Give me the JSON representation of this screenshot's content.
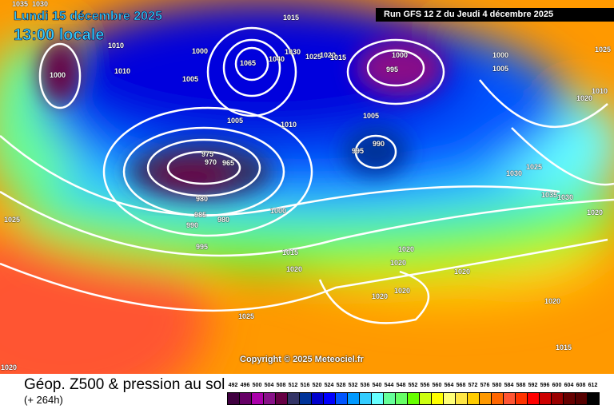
{
  "header": {
    "date_line": "Lundi 15 décembre 2025",
    "time_line": "13:00 locale",
    "run_info": "Run GFS 12 Z du Jeudi 4 décembre 2025"
  },
  "copyright": "Copyright © 2025 Meteociel.fr",
  "footer": {
    "title": "Géop. Z500 & pression au sol",
    "forecast_hour": "(+ 264h)"
  },
  "legend": {
    "values": [
      "492",
      "496",
      "500",
      "504",
      "508",
      "512",
      "516",
      "520",
      "524",
      "528",
      "532",
      "536",
      "540",
      "544",
      "548",
      "552",
      "556",
      "560",
      "564",
      "568",
      "572",
      "576",
      "580",
      "584",
      "588",
      "592",
      "596",
      "600",
      "604",
      "608",
      "612"
    ],
    "colors": [
      "#400040",
      "#660066",
      "#aa00aa",
      "#881188",
      "#660044",
      "#333366",
      "#003399",
      "#0000cc",
      "#0000ff",
      "#0055ff",
      "#0099ff",
      "#33ccff",
      "#66ffff",
      "#66ff99",
      "#66ff66",
      "#66ff00",
      "#ccff11",
      "#ffff00",
      "#ffff77",
      "#ffe644",
      "#ffcc00",
      "#ff9900",
      "#ff6600",
      "#ff5533",
      "#ff3300",
      "#ff0000",
      "#cc0000",
      "#990000",
      "#660000",
      "#550000",
      "#000000"
    ]
  },
  "pressure_labels": [
    "1035",
    "1030",
    "1015",
    "1010",
    "1000",
    "1065",
    "1040",
    "1030",
    "1025",
    "1020",
    "1015",
    "1000",
    "995",
    "1000",
    "1005",
    "1025",
    "1010",
    "1000",
    "1005",
    "1020",
    "1010",
    "1005",
    "1010",
    "1005",
    "990",
    "995",
    "975",
    "970",
    "965",
    "1030",
    "1025",
    "1035",
    "1030",
    "980",
    "1020",
    "1000",
    "985",
    "980",
    "990",
    "995",
    "1025",
    "1015",
    "1020",
    "1020",
    "1020",
    "1020",
    "1020",
    "1020",
    "1025",
    "1020",
    "1015",
    "1020"
  ]
}
